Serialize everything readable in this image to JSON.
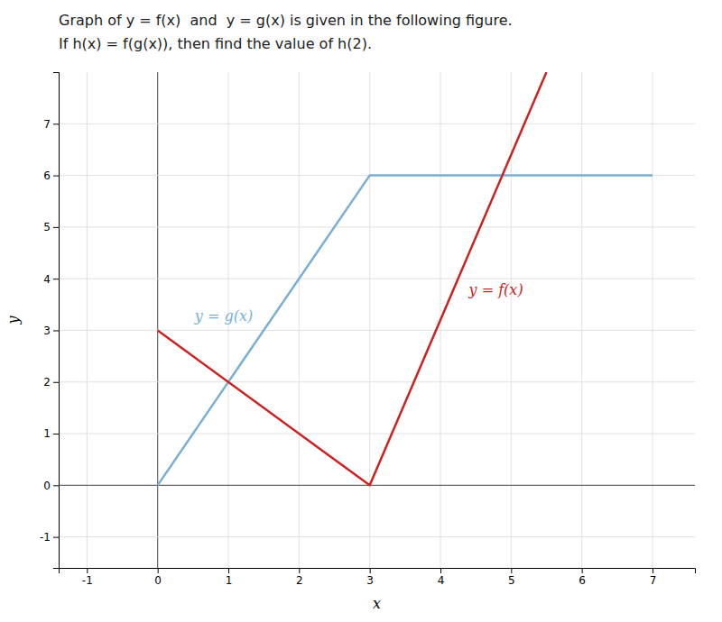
{
  "chart_data": {
    "type": "line",
    "title": "Graph of y = f(x)  and  y = g(x) is given in the following figure.",
    "subtitle": "If h(x) = f(g(x)), then find the value of h(2).",
    "xlabel": "x",
    "ylabel": "y",
    "series": [
      {
        "name": "y = g(x)",
        "color": "#7aafd4",
        "x": [
          0,
          3,
          7
        ],
        "values": [
          0,
          6,
          6
        ]
      },
      {
        "name": "y = f(x)",
        "color": "#cc2222",
        "x": [
          0,
          3,
          5.5
        ],
        "values": [
          3,
          0,
          8.0
        ]
      }
    ],
    "xlim": [
      -1.4,
      7.6
    ],
    "ylim": [
      -1.6,
      8.0
    ],
    "xticks": [
      -1,
      0,
      1,
      2,
      3,
      4,
      5,
      6,
      7
    ],
    "yticks": [
      -1,
      0,
      1,
      2,
      3,
      4,
      5,
      6,
      7
    ],
    "grid": true
  }
}
